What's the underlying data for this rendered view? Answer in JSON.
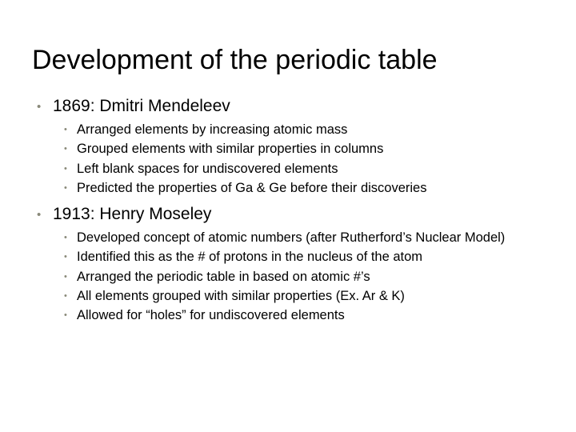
{
  "slide": {
    "background_color": "#ffffff",
    "text_color": "#000000",
    "bullet_color": "#8a8a7a",
    "title": "Development of the periodic table",
    "title_fontsize": 34,
    "level1_fontsize": 21,
    "level2_fontsize": 16.5,
    "items": [
      {
        "label": "1869: Dmitri Mendeleev",
        "sub": [
          "Arranged elements by increasing atomic mass",
          "Grouped elements with similar properties in columns",
          "Left blank spaces for undiscovered elements",
          "Predicted the properties of Ga & Ge before their discoveries"
        ]
      },
      {
        "label": "1913: Henry Moseley",
        "sub": [
          "Developed concept of atomic numbers (after Rutherford’s Nuclear Model)",
          "Identified this as the # of protons in the nucleus of the atom",
          "Arranged the periodic table in based on atomic #’s",
          "All elements grouped with similar properties (Ex. Ar & K)",
          "Allowed for “holes” for undiscovered elements"
        ]
      }
    ]
  }
}
